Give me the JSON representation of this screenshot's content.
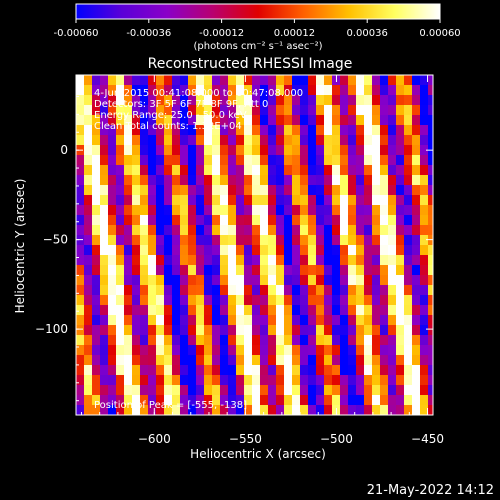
{
  "colorbar": {
    "tick_labels": [
      "-0.00060",
      "-0.00036",
      "-0.00012",
      "0.00012",
      "0.00036",
      "0.00060"
    ],
    "tick_values": [
      -0.0006,
      -0.00036,
      -0.00012,
      0.00012,
      0.00036,
      0.0006
    ],
    "unit_label": "(photons cm⁻² s⁻¹ asec⁻²)",
    "colormap": [
      "#0000ff",
      "#5a00d8",
      "#8a00c8",
      "#b80070",
      "#e00000",
      "#ff6000",
      "#ffc000",
      "#ffff60",
      "#ffffff"
    ]
  },
  "chart_data": {
    "type": "heatmap",
    "title": "Reconstructed RHESSI Image",
    "xlabel": "Heliocentric X (arcsec)",
    "ylabel": "Heliocentric Y (arcsec)",
    "xlim": [
      -643,
      -447
    ],
    "ylim": [
      -148,
      42
    ],
    "x_ticks": [
      -600,
      -550,
      -500,
      -450
    ],
    "y_ticks": [
      0,
      -50,
      -100
    ],
    "x_tick_labels": [
      "−600",
      "−550",
      "−500",
      "−450"
    ],
    "y_tick_labels": [
      "0",
      "−50",
      "−100"
    ],
    "value_range": [
      -0.0006,
      0.0006
    ],
    "pattern": "diagonal stripes",
    "annotations": [
      "4-Jun-2015 00:41:08.000 to 00:47:08.000",
      "Detectors: 3F 5F 6F 7F 8F 9F, Att 0",
      "Energy Range: 25.0 - 50.0 keV",
      "Clean    Total counts: 1.32E+04"
    ],
    "peak_label": "Position of Peak = [-555, -138]",
    "peak": [
      -555,
      -138
    ]
  },
  "footer": {
    "timestamp": "21-May-2022 14:12"
  }
}
